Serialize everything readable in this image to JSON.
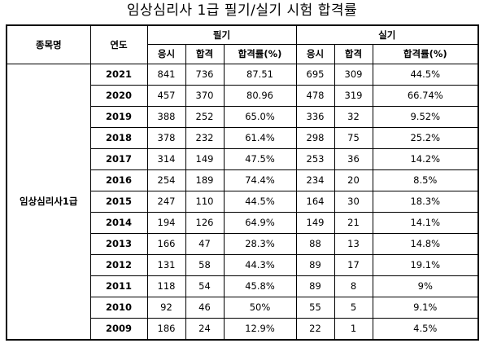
{
  "title": "임상심리사 1급 필기/실기 시험 합격률",
  "headers": {
    "subject": "종목명",
    "year": "연도",
    "written": "필기",
    "practical": "실기",
    "applicants": "응시",
    "passed": "합격",
    "rate": "합격률(%)"
  },
  "subject": "임상심리사1급",
  "rows": [
    {
      "year": "2021",
      "w_app": "841",
      "w_pass": "736",
      "w_rate": "87.51",
      "p_app": "695",
      "p_pass": "309",
      "p_rate": "44.5%"
    },
    {
      "year": "2020",
      "w_app": "457",
      "w_pass": "370",
      "w_rate": "80.96",
      "p_app": "478",
      "p_pass": "319",
      "p_rate": "66.74%"
    },
    {
      "year": "2019",
      "w_app": "388",
      "w_pass": "252",
      "w_rate": "65.0%",
      "p_app": "336",
      "p_pass": "32",
      "p_rate": "9.52%"
    },
    {
      "year": "2018",
      "w_app": "378",
      "w_pass": "232",
      "w_rate": "61.4%",
      "p_app": "298",
      "p_pass": "75",
      "p_rate": "25.2%"
    },
    {
      "year": "2017",
      "w_app": "314",
      "w_pass": "149",
      "w_rate": "47.5%",
      "p_app": "253",
      "p_pass": "36",
      "p_rate": "14.2%"
    },
    {
      "year": "2016",
      "w_app": "254",
      "w_pass": "189",
      "w_rate": "74.4%",
      "p_app": "234",
      "p_pass": "20",
      "p_rate": "8.5%"
    },
    {
      "year": "2015",
      "w_app": "247",
      "w_pass": "110",
      "w_rate": "44.5%",
      "p_app": "164",
      "p_pass": "30",
      "p_rate": "18.3%"
    },
    {
      "year": "2014",
      "w_app": "194",
      "w_pass": "126",
      "w_rate": "64.9%",
      "p_app": "149",
      "p_pass": "21",
      "p_rate": "14.1%"
    },
    {
      "year": "2013",
      "w_app": "166",
      "w_pass": "47",
      "w_rate": "28.3%",
      "p_app": "88",
      "p_pass": "13",
      "p_rate": "14.8%"
    },
    {
      "year": "2012",
      "w_app": "131",
      "w_pass": "58",
      "w_rate": "44.3%",
      "p_app": "89",
      "p_pass": "17",
      "p_rate": "19.1%"
    },
    {
      "year": "2011",
      "w_app": "118",
      "w_pass": "54",
      "w_rate": "45.8%",
      "p_app": "89",
      "p_pass": "8",
      "p_rate": "9%"
    },
    {
      "year": "2010",
      "w_app": "92",
      "w_pass": "46",
      "w_rate": "50%",
      "p_app": "55",
      "p_pass": "5",
      "p_rate": "9.1%"
    },
    {
      "year": "2009",
      "w_app": "186",
      "w_pass": "24",
      "w_rate": "12.9%",
      "p_app": "22",
      "p_pass": "1",
      "p_rate": "4.5%"
    }
  ]
}
